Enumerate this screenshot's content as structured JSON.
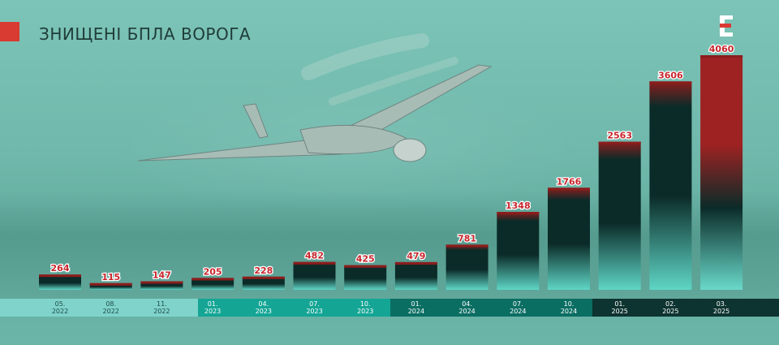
{
  "title": "ЗНИЩЕНІ БПЛА ВОРОГА",
  "brand": {
    "logo_icon": "e-letter-logo-icon",
    "logo_color": "#ffffff",
    "accent_color": "#d93a32"
  },
  "chart_data": {
    "type": "bar",
    "title": "ЗНИЩЕНІ БПЛА ВОРОГА",
    "categories": [
      {
        "month": "05.",
        "year": "2022"
      },
      {
        "month": "08.",
        "year": "2022"
      },
      {
        "month": "11.",
        "year": "2022"
      },
      {
        "month": "01.",
        "year": "2023"
      },
      {
        "month": "04.",
        "year": "2023"
      },
      {
        "month": "07.",
        "year": "2023"
      },
      {
        "month": "10.",
        "year": "2023"
      },
      {
        "month": "01.",
        "year": "2024"
      },
      {
        "month": "04.",
        "year": "2024"
      },
      {
        "month": "07.",
        "year": "2024"
      },
      {
        "month": "10.",
        "year": "2024"
      },
      {
        "month": "01.",
        "year": "2025"
      },
      {
        "month": "02.",
        "year": "2025"
      },
      {
        "month": "03.",
        "year": "2025"
      }
    ],
    "values": [
      264,
      115,
      147,
      205,
      228,
      482,
      425,
      479,
      781,
      1348,
      1766,
      2563,
      3606,
      4060
    ],
    "ylim": [
      0,
      4060
    ],
    "xlabel": "",
    "ylabel": "",
    "grid": false,
    "colors": {
      "bar_top": "#8b1d1d",
      "bar_dark": "#0b2b28",
      "bar_bottom": "#5fd6c6",
      "highlight_bar_top": "#9e2222",
      "highlight_bar_bottom": "#6ad9ca",
      "label": "#c8262c",
      "year_2022_band": "#7fd3cb",
      "year_2023_band": "#14a595",
      "year_2024_band": "#0b6e63",
      "year_2025_band": "#0d3430"
    }
  }
}
